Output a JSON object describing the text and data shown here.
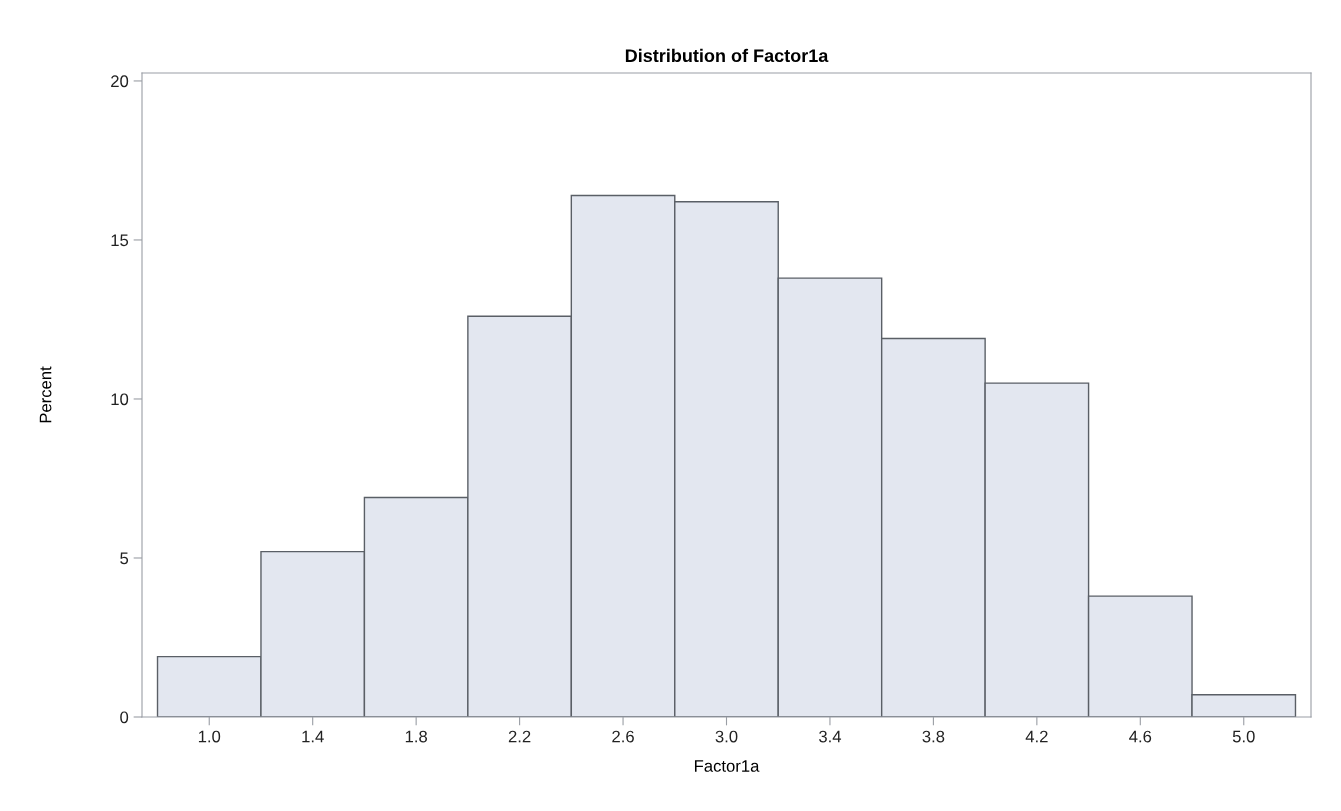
{
  "chart_data": {
    "type": "histogram",
    "title": "Distribution of Factor1a",
    "xlabel": "Factor1a",
    "ylabel": "Percent",
    "bins": [
      0.8,
      1.2,
      1.6,
      2.0,
      2.4,
      2.8,
      3.2,
      3.6,
      4.0,
      4.4,
      4.8,
      5.2
    ],
    "values": [
      1.9,
      5.2,
      6.9,
      12.6,
      16.4,
      16.2,
      13.8,
      11.9,
      10.5,
      3.8,
      0.7
    ],
    "color": "#e3e7f0",
    "xlim": [
      0.74,
      5.26
    ],
    "ylim": [
      0,
      20.25
    ],
    "xticks": [
      {
        "value": 1.0,
        "label": "1.0"
      },
      1.4,
      1.8,
      2.2,
      2.6,
      {
        "value": 3.0,
        "label": "3.0"
      },
      3.4,
      3.8,
      4.2,
      4.6,
      {
        "value": 5.0,
        "label": "5.0"
      }
    ],
    "yticks": [
      0,
      5,
      10,
      15,
      20
    ],
    "grid": false,
    "legend": false
  }
}
